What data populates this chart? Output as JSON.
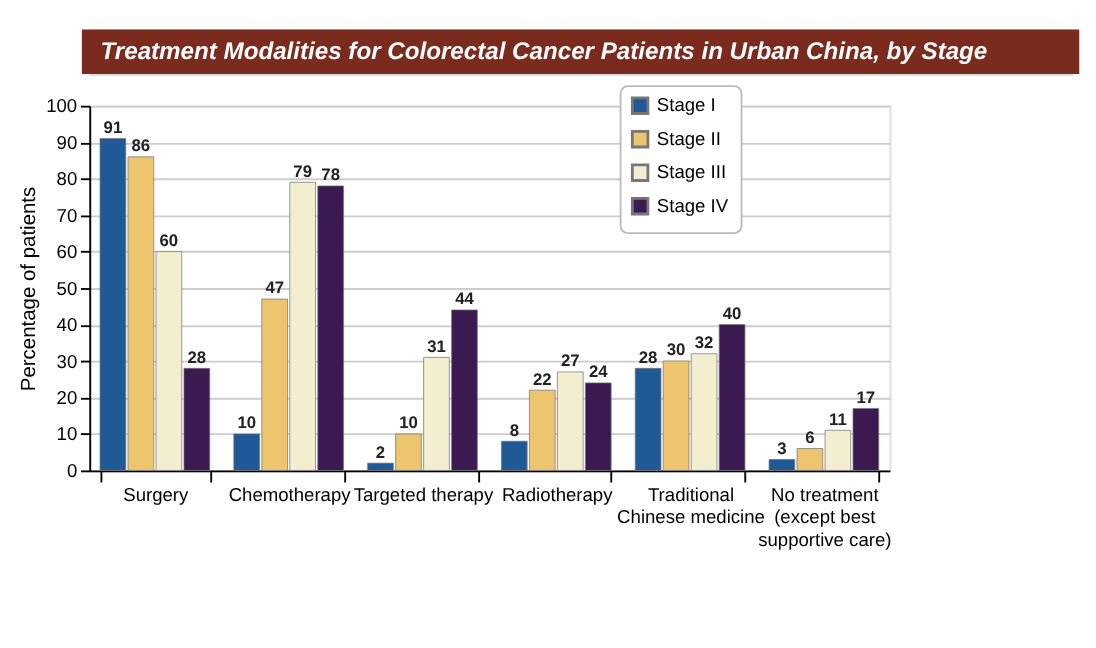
{
  "chart_data": {
    "type": "bar",
    "title": "Treatment Modalities for Colorectal Cancer Patients in Urban China, by Stage",
    "ylabel": "Percentage of patients",
    "categories": [
      "Surgery",
      "Chemotherapy",
      "Targeted therapy",
      "Radiotherapy",
      "Traditional Chinese medicine",
      "No treatment (except best supportive care)"
    ],
    "series": [
      {
        "name": "Stage I",
        "color": "#1f5a96",
        "values": [
          91,
          10,
          2,
          8,
          28,
          3
        ]
      },
      {
        "name": "Stage II",
        "color": "#ecc56e",
        "values": [
          86,
          47,
          10,
          22,
          30,
          6
        ]
      },
      {
        "name": "Stage III",
        "color": "#f3eed0",
        "values": [
          60,
          79,
          31,
          27,
          32,
          11
        ]
      },
      {
        "name": "Stage IV",
        "color": "#3b1a52",
        "values": [
          28,
          78,
          44,
          24,
          40,
          17
        ]
      }
    ],
    "ylim": [
      0,
      100
    ],
    "yticks": [
      0,
      10,
      20,
      30,
      40,
      50,
      60,
      70,
      80,
      90,
      100
    ],
    "grid": "y",
    "legend": "top right",
    "data_labels": true
  }
}
